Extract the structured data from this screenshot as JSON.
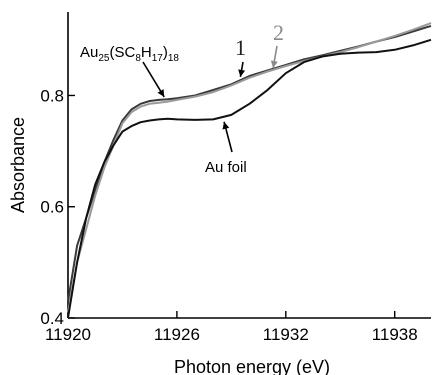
{
  "chart_data": {
    "type": "line",
    "xlabel": "Photon energy (eV)",
    "ylabel": "Absorbance",
    "xlim": [
      11920,
      11940
    ],
    "ylim": [
      0.4,
      0.95
    ],
    "x_ticks": [
      11920,
      11926,
      11932,
      11938
    ],
    "x_tick_labels": [
      "11920",
      "11926",
      "11932",
      "11938"
    ],
    "y_ticks": [
      0.4,
      0.6,
      0.8
    ],
    "y_tick_labels": [
      "0.4",
      "0.6",
      "0.8"
    ],
    "grid": false,
    "legend": "none",
    "series": [
      {
        "color": "#3a3a3a",
        "x": [
          11920,
          11920.5,
          11921,
          11921.5,
          11922,
          11922.5,
          11923,
          11923.5,
          11924,
          11924.5,
          11925,
          11925.5,
          11926,
          11927,
          11928,
          11929,
          11930,
          11931,
          11932,
          11933,
          11934,
          11935,
          11936,
          11937,
          11938,
          11939,
          11940
        ],
        "y": [
          0.43,
          0.53,
          0.58,
          0.63,
          0.68,
          0.72,
          0.755,
          0.775,
          0.785,
          0.79,
          0.792,
          0.793,
          0.795,
          0.8,
          0.81,
          0.82,
          0.835,
          0.845,
          0.855,
          0.865,
          0.872,
          0.88,
          0.888,
          0.897,
          0.905,
          0.915,
          0.925
        ]
      },
      {
        "color": "#9a9a9a",
        "x": [
          11920,
          11920.5,
          11921,
          11921.5,
          11922,
          11922.5,
          11923,
          11923.5,
          11924,
          11924.5,
          11925,
          11925.5,
          11926,
          11927,
          11928,
          11929,
          11930,
          11931,
          11932,
          11933,
          11934,
          11935,
          11936,
          11937,
          11938,
          11939,
          11940
        ],
        "y": [
          0.41,
          0.5,
          0.56,
          0.62,
          0.67,
          0.71,
          0.75,
          0.77,
          0.78,
          0.785,
          0.787,
          0.789,
          0.792,
          0.798,
          0.806,
          0.818,
          0.832,
          0.843,
          0.853,
          0.862,
          0.87,
          0.878,
          0.887,
          0.897,
          0.907,
          0.918,
          0.93
        ]
      },
      {
        "color": "#111111",
        "x": [
          11920,
          11920.5,
          11921,
          11921.5,
          11922,
          11922.5,
          11923,
          11923.5,
          11924,
          11924.5,
          11925,
          11925.5,
          11926,
          11927,
          11928,
          11929,
          11930,
          11931,
          11932,
          11933,
          11934,
          11935,
          11936,
          11937,
          11938,
          11939,
          11940
        ],
        "y": [
          0.4,
          0.5,
          0.58,
          0.64,
          0.68,
          0.71,
          0.735,
          0.745,
          0.752,
          0.755,
          0.757,
          0.758,
          0.757,
          0.756,
          0.757,
          0.765,
          0.785,
          0.81,
          0.84,
          0.86,
          0.87,
          0.875,
          0.877,
          0.878,
          0.882,
          0.89,
          0.9
        ]
      }
    ],
    "annotations": [
      {
        "id": "au25",
        "label": "Au25(SC8H17)18",
        "points_to": [
          11925.3,
          0.792
        ]
      },
      {
        "id": "curve-1",
        "label": "1",
        "points_to": [
          11929.5,
          0.828
        ]
      },
      {
        "id": "curve-2",
        "label": "2",
        "points_to": [
          11931.3,
          0.844
        ]
      },
      {
        "id": "au-foil",
        "label": "Au foil",
        "points_to": [
          11928.6,
          0.758
        ]
      }
    ],
    "annotation_text": {
      "au25_main": "Au",
      "au25_sub1": "25",
      "au25_mid1": "(SC",
      "au25_sub2": "8",
      "au25_mid2": "H",
      "au25_sub3": "17",
      "au25_mid3": ")",
      "au25_sub4": "18",
      "label1": "1",
      "label2": "2",
      "au_foil": "Au foil"
    }
  }
}
